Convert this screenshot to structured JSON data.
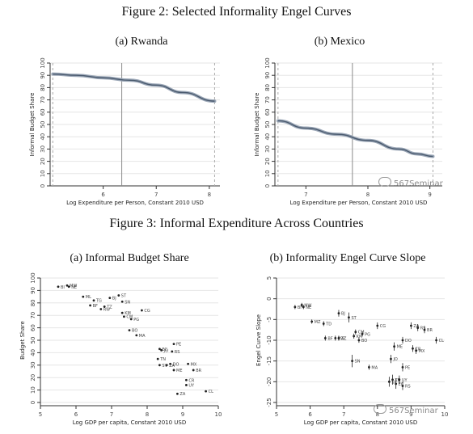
{
  "figure2": {
    "title": "Figure 2: Selected Informality Engel Curves",
    "panels": [
      {
        "caption": "(a) Rwanda"
      },
      {
        "caption": "(b) Mexico"
      }
    ]
  },
  "figure3": {
    "title": "Figure 3: Informal Expenditure Across Countries",
    "panels": [
      {
        "caption": "(a) Informal Budget Share"
      },
      {
        "caption": "(b) Informality Engel Curve Slope"
      }
    ]
  },
  "watermark": "567Seminar",
  "colors": {
    "curve": "#4a5a6e",
    "axis": "#333333",
    "grid": "#e6e6e6",
    "vline": "#8a8a8a",
    "point": "#222222",
    "text": "#444444"
  },
  "chart_data": [
    {
      "type": "line",
      "xlabel": "Log Expenditure per Person, Constant 2010 USD",
      "ylabel": "Informal Budget Share",
      "xlim": [
        5.0,
        8.2
      ],
      "ylim": [
        0,
        100
      ],
      "xticks": [
        6,
        7,
        8
      ],
      "yticks": [
        0,
        10,
        20,
        30,
        40,
        50,
        60,
        70,
        80,
        90,
        100
      ],
      "vlines_dashed": [
        5.05,
        8.1
      ],
      "vline_solid": 6.35,
      "series": [
        {
          "x": [
            5.05,
            5.5,
            6.0,
            6.5,
            7.0,
            7.5,
            8.1
          ],
          "y": [
            91,
            90,
            88,
            86,
            82,
            76,
            69
          ]
        }
      ]
    },
    {
      "type": "line",
      "xlabel": "Log Expenditure per Person, Constant 2010 USD",
      "ylabel": "Informal Budget Share",
      "xlim": [
        6.5,
        9.2
      ],
      "ylim": [
        0,
        100
      ],
      "xticks": [
        7,
        8,
        9
      ],
      "yticks": [
        0,
        10,
        20,
        30,
        40,
        50,
        60,
        70,
        80,
        90,
        100
      ],
      "vlines_dashed": [
        6.55,
        9.05
      ],
      "vline_solid": 7.75,
      "series": [
        {
          "x": [
            6.55,
            7.0,
            7.5,
            8.0,
            8.5,
            8.8,
            9.05
          ],
          "y": [
            53,
            47,
            42,
            37,
            30,
            26,
            24
          ]
        }
      ]
    },
    {
      "type": "scatter",
      "xlabel": "Log GDP per capita, Constant 2010 USD",
      "ylabel": "Budget Share",
      "xlim": [
        5,
        10
      ],
      "ylim": [
        0,
        100
      ],
      "xticks": [
        5,
        6,
        7,
        8,
        9,
        10
      ],
      "yticks": [
        0,
        10,
        20,
        30,
        40,
        50,
        60,
        70,
        80,
        90,
        100
      ],
      "points": [
        {
          "label": "BI",
          "x": 5.5,
          "y": 93
        },
        {
          "label": "MW",
          "x": 5.75,
          "y": 94
        },
        {
          "label": "NE",
          "x": 5.8,
          "y": 93
        },
        {
          "label": "ML",
          "x": 6.2,
          "y": 85
        },
        {
          "label": "TG",
          "x": 6.5,
          "y": 82
        },
        {
          "label": "BF",
          "x": 6.4,
          "y": 78
        },
        {
          "label": "RW",
          "x": 6.7,
          "y": 75
        },
        {
          "label": "TZ",
          "x": 6.8,
          "y": 77
        },
        {
          "label": "BJ",
          "x": 6.95,
          "y": 84
        },
        {
          "label": "ST",
          "x": 7.2,
          "y": 86
        },
        {
          "label": "SN",
          "x": 7.3,
          "y": 81
        },
        {
          "label": "KM",
          "x": 7.3,
          "y": 72
        },
        {
          "label": "CM",
          "x": 7.35,
          "y": 69
        },
        {
          "label": "PG",
          "x": 7.55,
          "y": 67
        },
        {
          "label": "CG",
          "x": 7.85,
          "y": 74
        },
        {
          "label": "BO",
          "x": 7.5,
          "y": 58
        },
        {
          "label": "MA",
          "x": 7.7,
          "y": 54
        },
        {
          "label": "PE",
          "x": 8.75,
          "y": 47
        },
        {
          "label": "JO",
          "x": 8.4,
          "y": 42
        },
        {
          "label": "EC",
          "x": 8.35,
          "y": 43
        },
        {
          "label": "RS",
          "x": 8.7,
          "y": 41
        },
        {
          "label": "TN",
          "x": 8.3,
          "y": 35
        },
        {
          "label": "SV",
          "x": 8.35,
          "y": 30
        },
        {
          "label": "DO",
          "x": 8.65,
          "y": 31
        },
        {
          "label": "ZA",
          "x": 8.55,
          "y": 30
        },
        {
          "label": "MX",
          "x": 9.15,
          "y": 31
        },
        {
          "label": "ME",
          "x": 8.75,
          "y": 26
        },
        {
          "label": "BR",
          "x": 9.3,
          "y": 26
        },
        {
          "label": "CR",
          "x": 9.1,
          "y": 18
        },
        {
          "label": "UY",
          "x": 9.1,
          "y": 14
        },
        {
          "label": "ZA",
          "x": 8.85,
          "y": 7
        },
        {
          "label": "CL",
          "x": 9.65,
          "y": 9
        }
      ]
    },
    {
      "type": "scatter",
      "xlabel": "Log GDP per capita, Constant 2010 USD",
      "ylabel": "Engel Curve Slope",
      "xlim": [
        5,
        10
      ],
      "ylim": [
        -25,
        5
      ],
      "xticks": [
        5,
        6,
        7,
        8,
        9,
        10
      ],
      "yticks": [
        5,
        0,
        -5,
        -10,
        -15,
        -20,
        -25
      ],
      "points": [
        {
          "label": "BI",
          "x": 5.55,
          "y": -2,
          "err": 0.5
        },
        {
          "label": "MW",
          "x": 5.75,
          "y": -1.5,
          "err": 0.5
        },
        {
          "label": "NE",
          "x": 5.8,
          "y": -2,
          "err": 0.5
        },
        {
          "label": "BJ",
          "x": 6.85,
          "y": -3.5,
          "err": 0.8
        },
        {
          "label": "ST",
          "x": 7.15,
          "y": -4.5,
          "err": 1.2
        },
        {
          "label": "MZ",
          "x": 6.05,
          "y": -5.5,
          "err": 0.5
        },
        {
          "label": "TD",
          "x": 6.4,
          "y": -6,
          "err": 0.6
        },
        {
          "label": "CG",
          "x": 8.0,
          "y": -6.5,
          "err": 0.8
        },
        {
          "label": "BF",
          "x": 6.45,
          "y": -9.5,
          "err": 0.6
        },
        {
          "label": "RW",
          "x": 6.75,
          "y": -9.5,
          "err": 0.6
        },
        {
          "label": "TZ",
          "x": 6.85,
          "y": -9.5,
          "err": 0.6
        },
        {
          "label": "CM",
          "x": 7.35,
          "y": -8,
          "err": 0.6
        },
        {
          "label": "PG",
          "x": 7.55,
          "y": -8.5,
          "err": 0.6
        },
        {
          "label": "KM",
          "x": 7.3,
          "y": -9,
          "err": 0.6
        },
        {
          "label": "BO",
          "x": 7.45,
          "y": -10,
          "err": 0.6
        },
        {
          "label": "ZA",
          "x": 9.0,
          "y": -6.5,
          "err": 0.8
        },
        {
          "label": "RS",
          "x": 9.2,
          "y": -7,
          "err": 0.8
        },
        {
          "label": "BR",
          "x": 9.4,
          "y": -7.5,
          "err": 0.8
        },
        {
          "label": "DO",
          "x": 8.75,
          "y": -10,
          "err": 0.8
        },
        {
          "label": "CL",
          "x": 9.75,
          "y": -10,
          "err": 0.8
        },
        {
          "label": "ME",
          "x": 8.5,
          "y": -11.5,
          "err": 1.0
        },
        {
          "label": "CR",
          "x": 9.05,
          "y": -12,
          "err": 0.8
        },
        {
          "label": "MX",
          "x": 9.15,
          "y": -12.5,
          "err": 0.8
        },
        {
          "label": "SN",
          "x": 7.25,
          "y": -15,
          "err": 1.5
        },
        {
          "label": "JO",
          "x": 8.4,
          "y": -14.5,
          "err": 1.0
        },
        {
          "label": "PE",
          "x": 8.75,
          "y": -16.5,
          "err": 1.0
        },
        {
          "label": "MA",
          "x": 7.75,
          "y": -16.5,
          "err": 0.6
        },
        {
          "label": "TN",
          "x": 8.45,
          "y": -19.5,
          "err": 1.2
        },
        {
          "label": "EC",
          "x": 8.55,
          "y": -20.5,
          "err": 1.2
        },
        {
          "label": "SV",
          "x": 8.35,
          "y": -20,
          "err": 1.2
        },
        {
          "label": "UY",
          "x": 8.65,
          "y": -19.5,
          "err": 1.0
        },
        {
          "label": "RS",
          "x": 8.75,
          "y": -21,
          "err": 1.0
        }
      ]
    }
  ]
}
